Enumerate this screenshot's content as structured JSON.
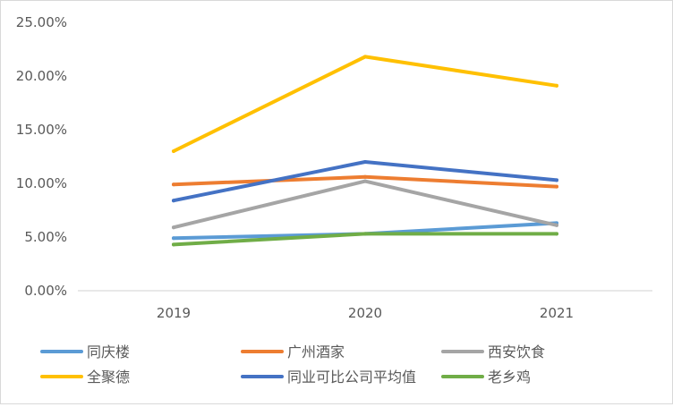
{
  "chart_data": {
    "type": "line",
    "title": "",
    "xlabel": "",
    "ylabel": "",
    "categories": [
      "2019",
      "2020",
      "2021"
    ],
    "y_ticks": [
      "0.00%",
      "5.00%",
      "10.00%",
      "15.00%",
      "20.00%",
      "25.00%"
    ],
    "ylim": [
      0,
      25
    ],
    "unit": "%",
    "grid": false,
    "legend_position": "bottom",
    "series": [
      {
        "name": "同庆楼",
        "color": "#5B9BD5",
        "values": [
          4.9,
          5.3,
          6.3
        ]
      },
      {
        "name": "广州酒家",
        "color": "#ED7D31",
        "values": [
          9.9,
          10.6,
          9.7
        ]
      },
      {
        "name": "西安饮食",
        "color": "#A5A5A5",
        "values": [
          5.9,
          10.2,
          6.1
        ]
      },
      {
        "name": "全聚德",
        "color": "#FFC000",
        "values": [
          13.0,
          21.8,
          19.1
        ]
      },
      {
        "name": "同业可比公司平均值",
        "color": "#4472C4",
        "values": [
          8.4,
          12.0,
          10.3
        ]
      },
      {
        "name": "老乡鸡",
        "color": "#70AD47",
        "values": [
          4.3,
          5.3,
          5.3
        ]
      }
    ]
  }
}
